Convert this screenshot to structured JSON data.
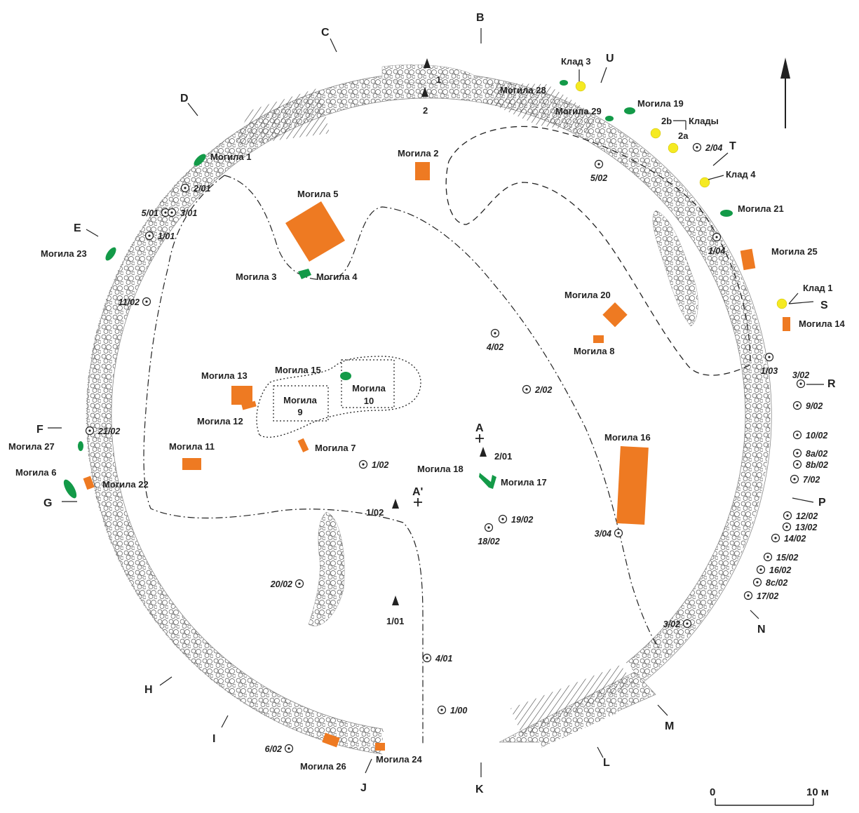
{
  "colors": {
    "orange": "#ee7a22",
    "green": "#139a48",
    "yellow": "#f5ea22",
    "ink": "#333333"
  },
  "graves_orange": [
    {
      "label": "Могила 2"
    },
    {
      "label": "Могила 5"
    },
    {
      "label": "Могила 13"
    },
    {
      "label": "Могила 12"
    },
    {
      "label": "Могила 11"
    },
    {
      "label": "Могила 7"
    },
    {
      "label": "Могила 20"
    },
    {
      "label": "Могила 8"
    },
    {
      "label": "Могила 16"
    },
    {
      "label": "Могила 25"
    },
    {
      "label": "Могила 14"
    },
    {
      "label": "Могила 22"
    },
    {
      "label": "Могила 26"
    },
    {
      "label": "Могила 24"
    }
  ],
  "graves_green": [
    {
      "label": "Могила 1"
    },
    {
      "label": "Могила 23"
    },
    {
      "label": "Могила 3"
    },
    {
      "label": "Могила 4"
    },
    {
      "label": "Могила 15"
    },
    {
      "label": "Могила 27"
    },
    {
      "label": "Могила 6"
    },
    {
      "label": "Могила 18"
    },
    {
      "label": "Могила 17"
    },
    {
      "label": "Могила 19"
    },
    {
      "label": "Могила 29"
    },
    {
      "label": "Могила 21"
    },
    {
      "label": "Могила 28"
    }
  ],
  "other_labels": [
    {
      "label": "Могила 9",
      "l1": "Могила",
      "l2": "9"
    },
    {
      "label": "Могила 10",
      "l1": "Могила",
      "l2": "10"
    }
  ],
  "hoards": [
    {
      "label": "Клад 3"
    },
    {
      "label": "2b"
    },
    {
      "label": "Клады"
    },
    {
      "label": "2a"
    },
    {
      "label": "Клад 4"
    },
    {
      "label": "Клад 1"
    }
  ],
  "sectors": [
    "B",
    "C",
    "D",
    "E",
    "F",
    "G",
    "H",
    "I",
    "J",
    "K",
    "L",
    "M",
    "N",
    "P",
    "R",
    "S",
    "T",
    "U"
  ],
  "benchmarks": [
    "1",
    "2",
    "2/01",
    "1/02",
    "1/01"
  ],
  "crosses": [
    "A",
    "A'"
  ],
  "test_pits": [
    "2/01",
    "5/01",
    "3/01",
    "1/01",
    "11/02",
    "21/02",
    "5/02",
    "2/04",
    "1/04",
    "1/03",
    "3/02",
    "9/02",
    "10/02",
    "8a/02",
    "8b/02",
    "7/02",
    "12/02",
    "13/02",
    "14/02",
    "15/02",
    "16/02",
    "8c/02",
    "17/02",
    "4/02",
    "2/02",
    "1/02",
    "19/02",
    "18/02",
    "3/04",
    "20/02",
    "3/02",
    "4/01",
    "1/00",
    "6/02"
  ],
  "scale": {
    "start": "0",
    "end": "10 м"
  }
}
